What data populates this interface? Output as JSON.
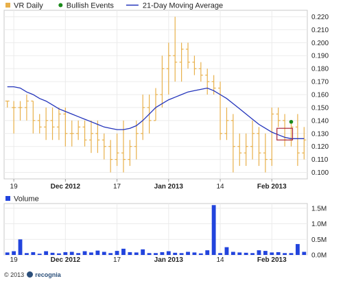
{
  "chart_data": [
    {
      "type": "bar",
      "subtype": "ohlc",
      "legend": {
        "placement": "top-left",
        "entries": [
          {
            "label": "VR Daily",
            "color": "#e8b04a",
            "marker": "square"
          },
          {
            "label": "Bullish Events",
            "color": "#1a8a1a",
            "marker": "dot"
          },
          {
            "label": "21-Day Moving Average",
            "color": "#2233bb",
            "marker": "line"
          }
        ]
      },
      "ylim": [
        0.095,
        0.225
      ],
      "y_ticks": [
        "0.100",
        "0.110",
        "0.120",
        "0.130",
        "0.140",
        "0.150",
        "0.160",
        "0.170",
        "0.180",
        "0.190",
        "0.200",
        "0.210",
        "0.220"
      ],
      "y_tick_values": [
        0.1,
        0.11,
        0.12,
        0.13,
        0.14,
        0.15,
        0.16,
        0.17,
        0.18,
        0.19,
        0.2,
        0.21,
        0.22
      ],
      "x_ticks": [
        {
          "label": "19",
          "index": 1,
          "bold": false
        },
        {
          "label": "Dec 2012",
          "index": 9,
          "bold": true
        },
        {
          "label": "17",
          "index": 17,
          "bold": false
        },
        {
          "label": "Jan 2013",
          "index": 25,
          "bold": true
        },
        {
          "label": "14",
          "index": 33,
          "bold": false
        },
        {
          "label": "Feb 2013",
          "index": 41,
          "bold": true
        }
      ],
      "grid": true,
      "series": [
        {
          "name": "VR Daily",
          "color": "#e8b04a",
          "ohlc": [
            [
              0.155,
              0.155,
              0.15,
              0.155
            ],
            [
              0.15,
              0.155,
              0.13,
              0.15
            ],
            [
              0.15,
              0.155,
              0.14,
              0.15
            ],
            [
              0.15,
              0.16,
              0.14,
              0.155
            ],
            [
              0.155,
              0.155,
              0.13,
              0.14
            ],
            [
              0.14,
              0.145,
              0.13,
              0.135
            ],
            [
              0.135,
              0.15,
              0.125,
              0.14
            ],
            [
              0.14,
              0.15,
              0.125,
              0.135
            ],
            [
              0.135,
              0.15,
              0.125,
              0.145
            ],
            [
              0.145,
              0.15,
              0.12,
              0.13
            ],
            [
              0.13,
              0.14,
              0.12,
              0.13
            ],
            [
              0.13,
              0.14,
              0.125,
              0.135
            ],
            [
              0.135,
              0.14,
              0.12,
              0.125
            ],
            [
              0.125,
              0.14,
              0.115,
              0.13
            ],
            [
              0.13,
              0.14,
              0.115,
              0.125
            ],
            [
              0.125,
              0.13,
              0.11,
              0.12
            ],
            [
              0.12,
              0.125,
              0.1,
              0.11
            ],
            [
              0.11,
              0.13,
              0.105,
              0.115
            ],
            [
              0.115,
              0.14,
              0.1,
              0.11
            ],
            [
              0.11,
              0.125,
              0.105,
              0.12
            ],
            [
              0.12,
              0.14,
              0.11,
              0.13
            ],
            [
              0.13,
              0.16,
              0.125,
              0.15
            ],
            [
              0.15,
              0.16,
              0.13,
              0.14
            ],
            [
              0.14,
              0.165,
              0.14,
              0.16
            ],
            [
              0.16,
              0.19,
              0.15,
              0.18
            ],
            [
              0.18,
              0.2,
              0.16,
              0.19
            ],
            [
              0.19,
              0.22,
              0.17,
              0.185
            ],
            [
              0.185,
              0.2,
              0.17,
              0.195
            ],
            [
              0.195,
              0.2,
              0.18,
              0.185
            ],
            [
              0.185,
              0.19,
              0.175,
              0.18
            ],
            [
              0.18,
              0.185,
              0.17,
              0.175
            ],
            [
              0.175,
              0.18,
              0.16,
              0.17
            ],
            [
              0.17,
              0.175,
              0.16,
              0.165
            ],
            [
              0.165,
              0.17,
              0.125,
              0.13
            ],
            [
              0.13,
              0.15,
              0.125,
              0.14
            ],
            [
              0.14,
              0.145,
              0.1,
              0.12
            ],
            [
              0.12,
              0.13,
              0.105,
              0.115
            ],
            [
              0.115,
              0.13,
              0.105,
              0.12
            ],
            [
              0.12,
              0.14,
              0.11,
              0.13
            ],
            [
              0.13,
              0.135,
              0.105,
              0.115
            ],
            [
              0.115,
              0.13,
              0.1,
              0.11
            ],
            [
              0.11,
              0.15,
              0.105,
              0.145
            ],
            [
              0.145,
              0.15,
              0.135,
              0.14
            ],
            [
              0.14,
              0.145,
              0.12,
              0.125
            ],
            [
              0.125,
              0.14,
              0.12,
              0.135
            ],
            [
              0.135,
              0.145,
              0.105,
              0.115
            ],
            [
              0.115,
              0.135,
              0.11,
              0.125
            ]
          ]
        },
        {
          "name": "21-Day Moving Average",
          "color": "#2233bb",
          "values": [
            0.166,
            0.166,
            0.165,
            0.162,
            0.16,
            0.157,
            0.155,
            0.152,
            0.149,
            0.147,
            0.145,
            0.143,
            0.141,
            0.139,
            0.137,
            0.135,
            0.134,
            0.133,
            0.133,
            0.134,
            0.136,
            0.14,
            0.145,
            0.15,
            0.153,
            0.156,
            0.158,
            0.16,
            0.162,
            0.163,
            0.164,
            0.165,
            0.163,
            0.16,
            0.157,
            0.153,
            0.149,
            0.145,
            0.141,
            0.137,
            0.134,
            0.131,
            0.129,
            0.127,
            0.126,
            0.126,
            0.126
          ]
        },
        {
          "name": "Bullish Events",
          "color": "#1a8a1a",
          "points": [
            {
              "index": 44,
              "value": 0.139
            }
          ]
        }
      ],
      "highlight_box": {
        "index_from": 42,
        "index_to": 44,
        "y_from": 0.125,
        "y_to": 0.134,
        "color": "#aa2233"
      }
    },
    {
      "type": "bar",
      "title": "Volume",
      "legend": {
        "placement": "top-left",
        "entries": [
          {
            "label": "Volume",
            "color": "#2244dd",
            "marker": "square"
          }
        ]
      },
      "ylim": [
        0,
        1650000
      ],
      "y_ticks": [
        "0.0M",
        "0.5M",
        "1.0M",
        "1.5M"
      ],
      "y_tick_values": [
        0,
        500000,
        1000000,
        1500000
      ],
      "grid": true,
      "series": [
        {
          "name": "Volume",
          "color": "#2244dd",
          "values": [
            80000,
            120000,
            500000,
            60000,
            90000,
            40000,
            120000,
            70000,
            50000,
            90000,
            100000,
            60000,
            120000,
            80000,
            140000,
            100000,
            60000,
            130000,
            200000,
            90000,
            80000,
            180000,
            60000,
            60000,
            90000,
            120000,
            70000,
            60000,
            100000,
            80000,
            50000,
            150000,
            1600000,
            60000,
            250000,
            100000,
            80000,
            70000,
            60000,
            150000,
            130000,
            80000,
            90000,
            60000,
            60000,
            350000,
            100000
          ]
        }
      ]
    }
  ],
  "footer": {
    "copyright": "© 2013",
    "brand": "recognia"
  }
}
